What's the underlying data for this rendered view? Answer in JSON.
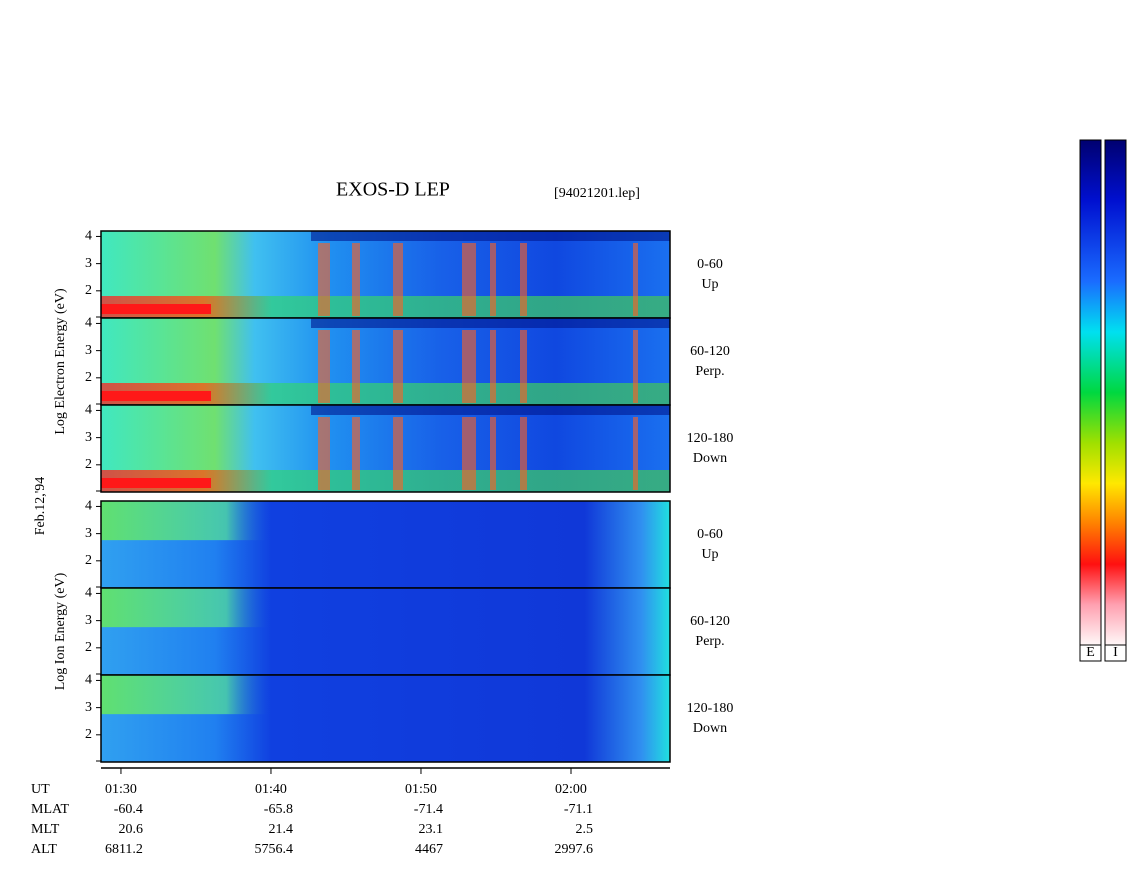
{
  "chart_data": {
    "type": "spectrogram",
    "title": "EXOS-D LEP",
    "file_label": "[94021201.lep]",
    "date_label": "Feb.12,'94",
    "xlim": [
      28.67,
      66.6
    ],
    "xticks": [
      {
        "value": 30,
        "label": "01:30"
      },
      {
        "value": 40,
        "label": "01:40"
      },
      {
        "value": 50,
        "label": "01:50"
      },
      {
        "value": 60,
        "label": "02:00"
      }
    ],
    "groups": [
      {
        "ylabel": "Log Electron Energy (eV)",
        "species": "electron",
        "panels": [
          {
            "angle": "0-60",
            "direction": "Up",
            "ylim": [
              1,
              4.2
            ],
            "yticks": [
              2,
              3,
              4
            ]
          },
          {
            "angle": "60-120",
            "direction": "Perp.",
            "ylim": [
              1,
              4.2
            ],
            "yticks": [
              2,
              3,
              4
            ]
          },
          {
            "angle": "120-180",
            "direction": "Down",
            "ylim": [
              1,
              4.2
            ],
            "yticks": [
              2,
              3,
              4
            ]
          }
        ]
      },
      {
        "ylabel": "Log Ion Energy (eV)",
        "species": "ion",
        "panels": [
          {
            "angle": "0-60",
            "direction": "Up",
            "ylim": [
              1,
              4.2
            ],
            "yticks": [
              2,
              3,
              4
            ]
          },
          {
            "angle": "60-120",
            "direction": "Perp.",
            "ylim": [
              1,
              4.2
            ],
            "yticks": [
              2,
              3,
              4
            ]
          },
          {
            "angle": "120-180",
            "direction": "Down",
            "ylim": [
              1,
              4.2
            ],
            "yticks": [
              2,
              3,
              4
            ]
          }
        ]
      }
    ],
    "colorbar_labels": [
      "E",
      "I"
    ],
    "orbit_table": {
      "time_row_label": "UT",
      "rows": [
        {
          "label": "MLAT",
          "values": [
            -60.4,
            -65.8,
            -71.4,
            -71.1
          ]
        },
        {
          "label": "MLT",
          "values": [
            20.6,
            21.4,
            23.1,
            2.5
          ]
        },
        {
          "label": "ALT",
          "values": [
            6811.2,
            5756.4,
            4467.0,
            2997.6
          ]
        }
      ]
    }
  }
}
